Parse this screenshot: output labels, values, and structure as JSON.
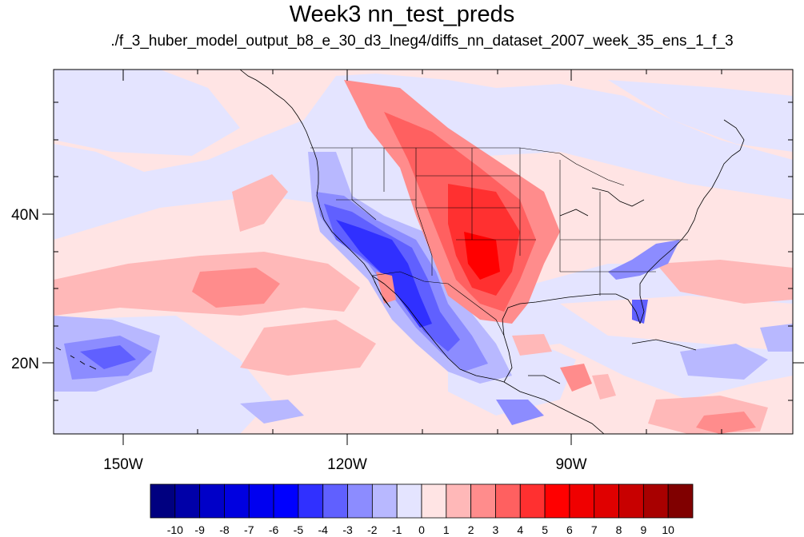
{
  "title": "Week3 nn_test_preds",
  "subtitle": "./f_3_huber_model_output_b8_e_30_d3_lneg4/diffs_nn_dataset_2007_week_35_ens_1_f_3",
  "axes": {
    "y_ticks": [
      "40N",
      "20N"
    ],
    "x_ticks": [
      "150W",
      "120W",
      "90W"
    ]
  },
  "colorbar": {
    "labels": [
      "-10",
      "-9",
      "-8",
      "-7",
      "-6",
      "-5",
      "-4",
      "-3",
      "-2",
      "-1",
      "0",
      "1",
      "2",
      "3",
      "4",
      "5",
      "6",
      "7",
      "8",
      "9",
      "10"
    ],
    "colors": [
      "#000080",
      "#0000a8",
      "#0000c8",
      "#0000e0",
      "#0000f0",
      "#0000ff",
      "#3030ff",
      "#6060ff",
      "#8c8cff",
      "#b8b8ff",
      "#e4e4ff",
      "#ffe4e4",
      "#ffb8b8",
      "#ff8c8c",
      "#ff6060",
      "#ff3030",
      "#ff0000",
      "#f00000",
      "#e00000",
      "#c80000",
      "#a80000",
      "#800000"
    ]
  },
  "palette": {
    "neutral_blue": "#e4e4ff",
    "neutral_red": "#ffe4e4",
    "light_blue": "#b8b8ff",
    "mid_blue": "#8c8cff",
    "blue": "#6060ff",
    "strong_blue": "#3030ff",
    "light_red": "#ffb8b8",
    "mid_red": "#ff8c8c",
    "red": "#ff6060",
    "strong_red": "#ff3030"
  }
}
